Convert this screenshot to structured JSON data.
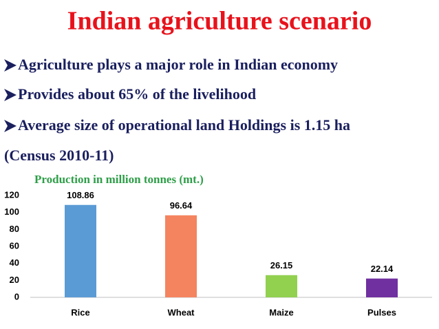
{
  "title": "Indian agriculture scenario",
  "bullets": [
    "Agriculture plays a major role in Indian economy",
    "Provides about 65% of the  livelihood",
    "Average size of operational land Holdings is 1.15 ha"
  ],
  "note": "(Census 2010-11)",
  "chart_data": {
    "type": "bar",
    "title": "Production in million tonnes (mt.)",
    "categories": [
      "Rice",
      "Wheat",
      "Maize",
      "Pulses"
    ],
    "values": [
      108.86,
      96.64,
      26.15,
      22.14
    ],
    "colors": [
      "#5b9bd5",
      "#f4845f",
      "#92d050",
      "#7030a0"
    ],
    "ylim": [
      0,
      120
    ],
    "yticks": [
      0,
      20,
      40,
      60,
      80,
      100,
      120
    ],
    "grid": false
  }
}
